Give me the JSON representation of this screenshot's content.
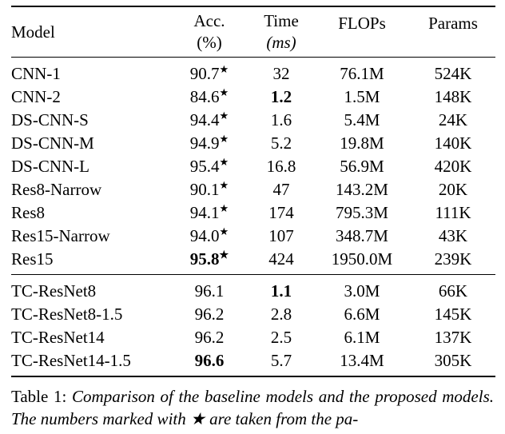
{
  "star_symbol": "★",
  "header": {
    "model": "Model",
    "acc_line1": "Acc.",
    "acc_line2": "(%)",
    "time_line1": "Time",
    "time_line2": "(ms)",
    "flops": "FLOPs",
    "params": "Params"
  },
  "baseline_rows": [
    {
      "model": "CNN-1",
      "acc": "90.7",
      "star": true,
      "acc_bold": false,
      "time": "32",
      "time_bold": false,
      "flops": "76.1M",
      "params": "524K"
    },
    {
      "model": "CNN-2",
      "acc": "84.6",
      "star": true,
      "acc_bold": false,
      "time": "1.2",
      "time_bold": true,
      "flops": "1.5M",
      "params": "148K"
    },
    {
      "model": "DS-CNN-S",
      "acc": "94.4",
      "star": true,
      "acc_bold": false,
      "time": "1.6",
      "time_bold": false,
      "flops": "5.4M",
      "params": "24K"
    },
    {
      "model": "DS-CNN-M",
      "acc": "94.9",
      "star": true,
      "acc_bold": false,
      "time": "5.2",
      "time_bold": false,
      "flops": "19.8M",
      "params": "140K"
    },
    {
      "model": "DS-CNN-L",
      "acc": "95.4",
      "star": true,
      "acc_bold": false,
      "time": "16.8",
      "time_bold": false,
      "flops": "56.9M",
      "params": "420K"
    },
    {
      "model": "Res8-Narrow",
      "acc": "90.1",
      "star": true,
      "acc_bold": false,
      "time": "47",
      "time_bold": false,
      "flops": "143.2M",
      "params": "20K"
    },
    {
      "model": "Res8",
      "acc": "94.1",
      "star": true,
      "acc_bold": false,
      "time": "174",
      "time_bold": false,
      "flops": "795.3M",
      "params": "111K"
    },
    {
      "model": "Res15-Narrow",
      "acc": "94.0",
      "star": true,
      "acc_bold": false,
      "time": "107",
      "time_bold": false,
      "flops": "348.7M",
      "params": "43K"
    },
    {
      "model": "Res15",
      "acc": "95.8",
      "star": true,
      "acc_bold": true,
      "time": "424",
      "time_bold": false,
      "flops": "1950.0M",
      "params": "239K"
    }
  ],
  "proposed_rows": [
    {
      "model": "TC-ResNet8",
      "acc": "96.1",
      "star": false,
      "acc_bold": false,
      "time": "1.1",
      "time_bold": true,
      "flops": "3.0M",
      "params": "66K"
    },
    {
      "model": "TC-ResNet8-1.5",
      "acc": "96.2",
      "star": false,
      "acc_bold": false,
      "time": "2.8",
      "time_bold": false,
      "flops": "6.6M",
      "params": "145K"
    },
    {
      "model": "TC-ResNet14",
      "acc": "96.2",
      "star": false,
      "acc_bold": false,
      "time": "2.5",
      "time_bold": false,
      "flops": "6.1M",
      "params": "137K"
    },
    {
      "model": "TC-ResNet14-1.5",
      "acc": "96.6",
      "star": false,
      "acc_bold": true,
      "time": "5.7",
      "time_bold": false,
      "flops": "13.4M",
      "params": "305K"
    }
  ],
  "caption": {
    "label": "Table 1:",
    "text": "Comparison of the baseline models and the proposed models.  The numbers marked with ★ are taken from the pa-"
  }
}
